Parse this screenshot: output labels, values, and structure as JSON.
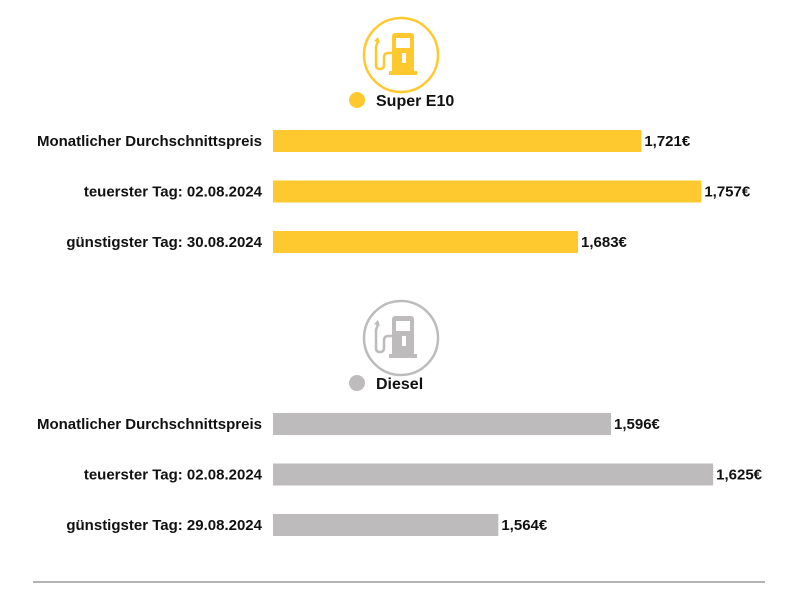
{
  "chart_data": {
    "type": "bar",
    "orientation": "horizontal",
    "unit": "€",
    "groups": [
      {
        "name": "Super E10",
        "icon": "fuel-pump-icon",
        "color": "#FDC92E",
        "xlim": [
          1.5,
          1.8
        ],
        "categories": [
          "Monatlicher Durchschnittspreis",
          "teuerster Tag: 02.08.2024",
          "günstigster Tag: 30.08.2024"
        ],
        "values": [
          1.721,
          1.757,
          1.683
        ],
        "labels": [
          "1,721€",
          "1,757€",
          "1,683€"
        ]
      },
      {
        "name": "Diesel",
        "icon": "fuel-pump-icon",
        "color": "#BDBBBB",
        "xlim": [
          1.5,
          1.642
        ],
        "categories": [
          "Monatlicher Durchschnittspreis",
          "teuerster Tag: 02.08.2024",
          "günstigster Tag: 29.08.2024"
        ],
        "values": [
          1.596,
          1.625,
          1.564
        ],
        "labels": [
          "1,596€",
          "1,625€",
          "1,564€"
        ]
      }
    ]
  }
}
